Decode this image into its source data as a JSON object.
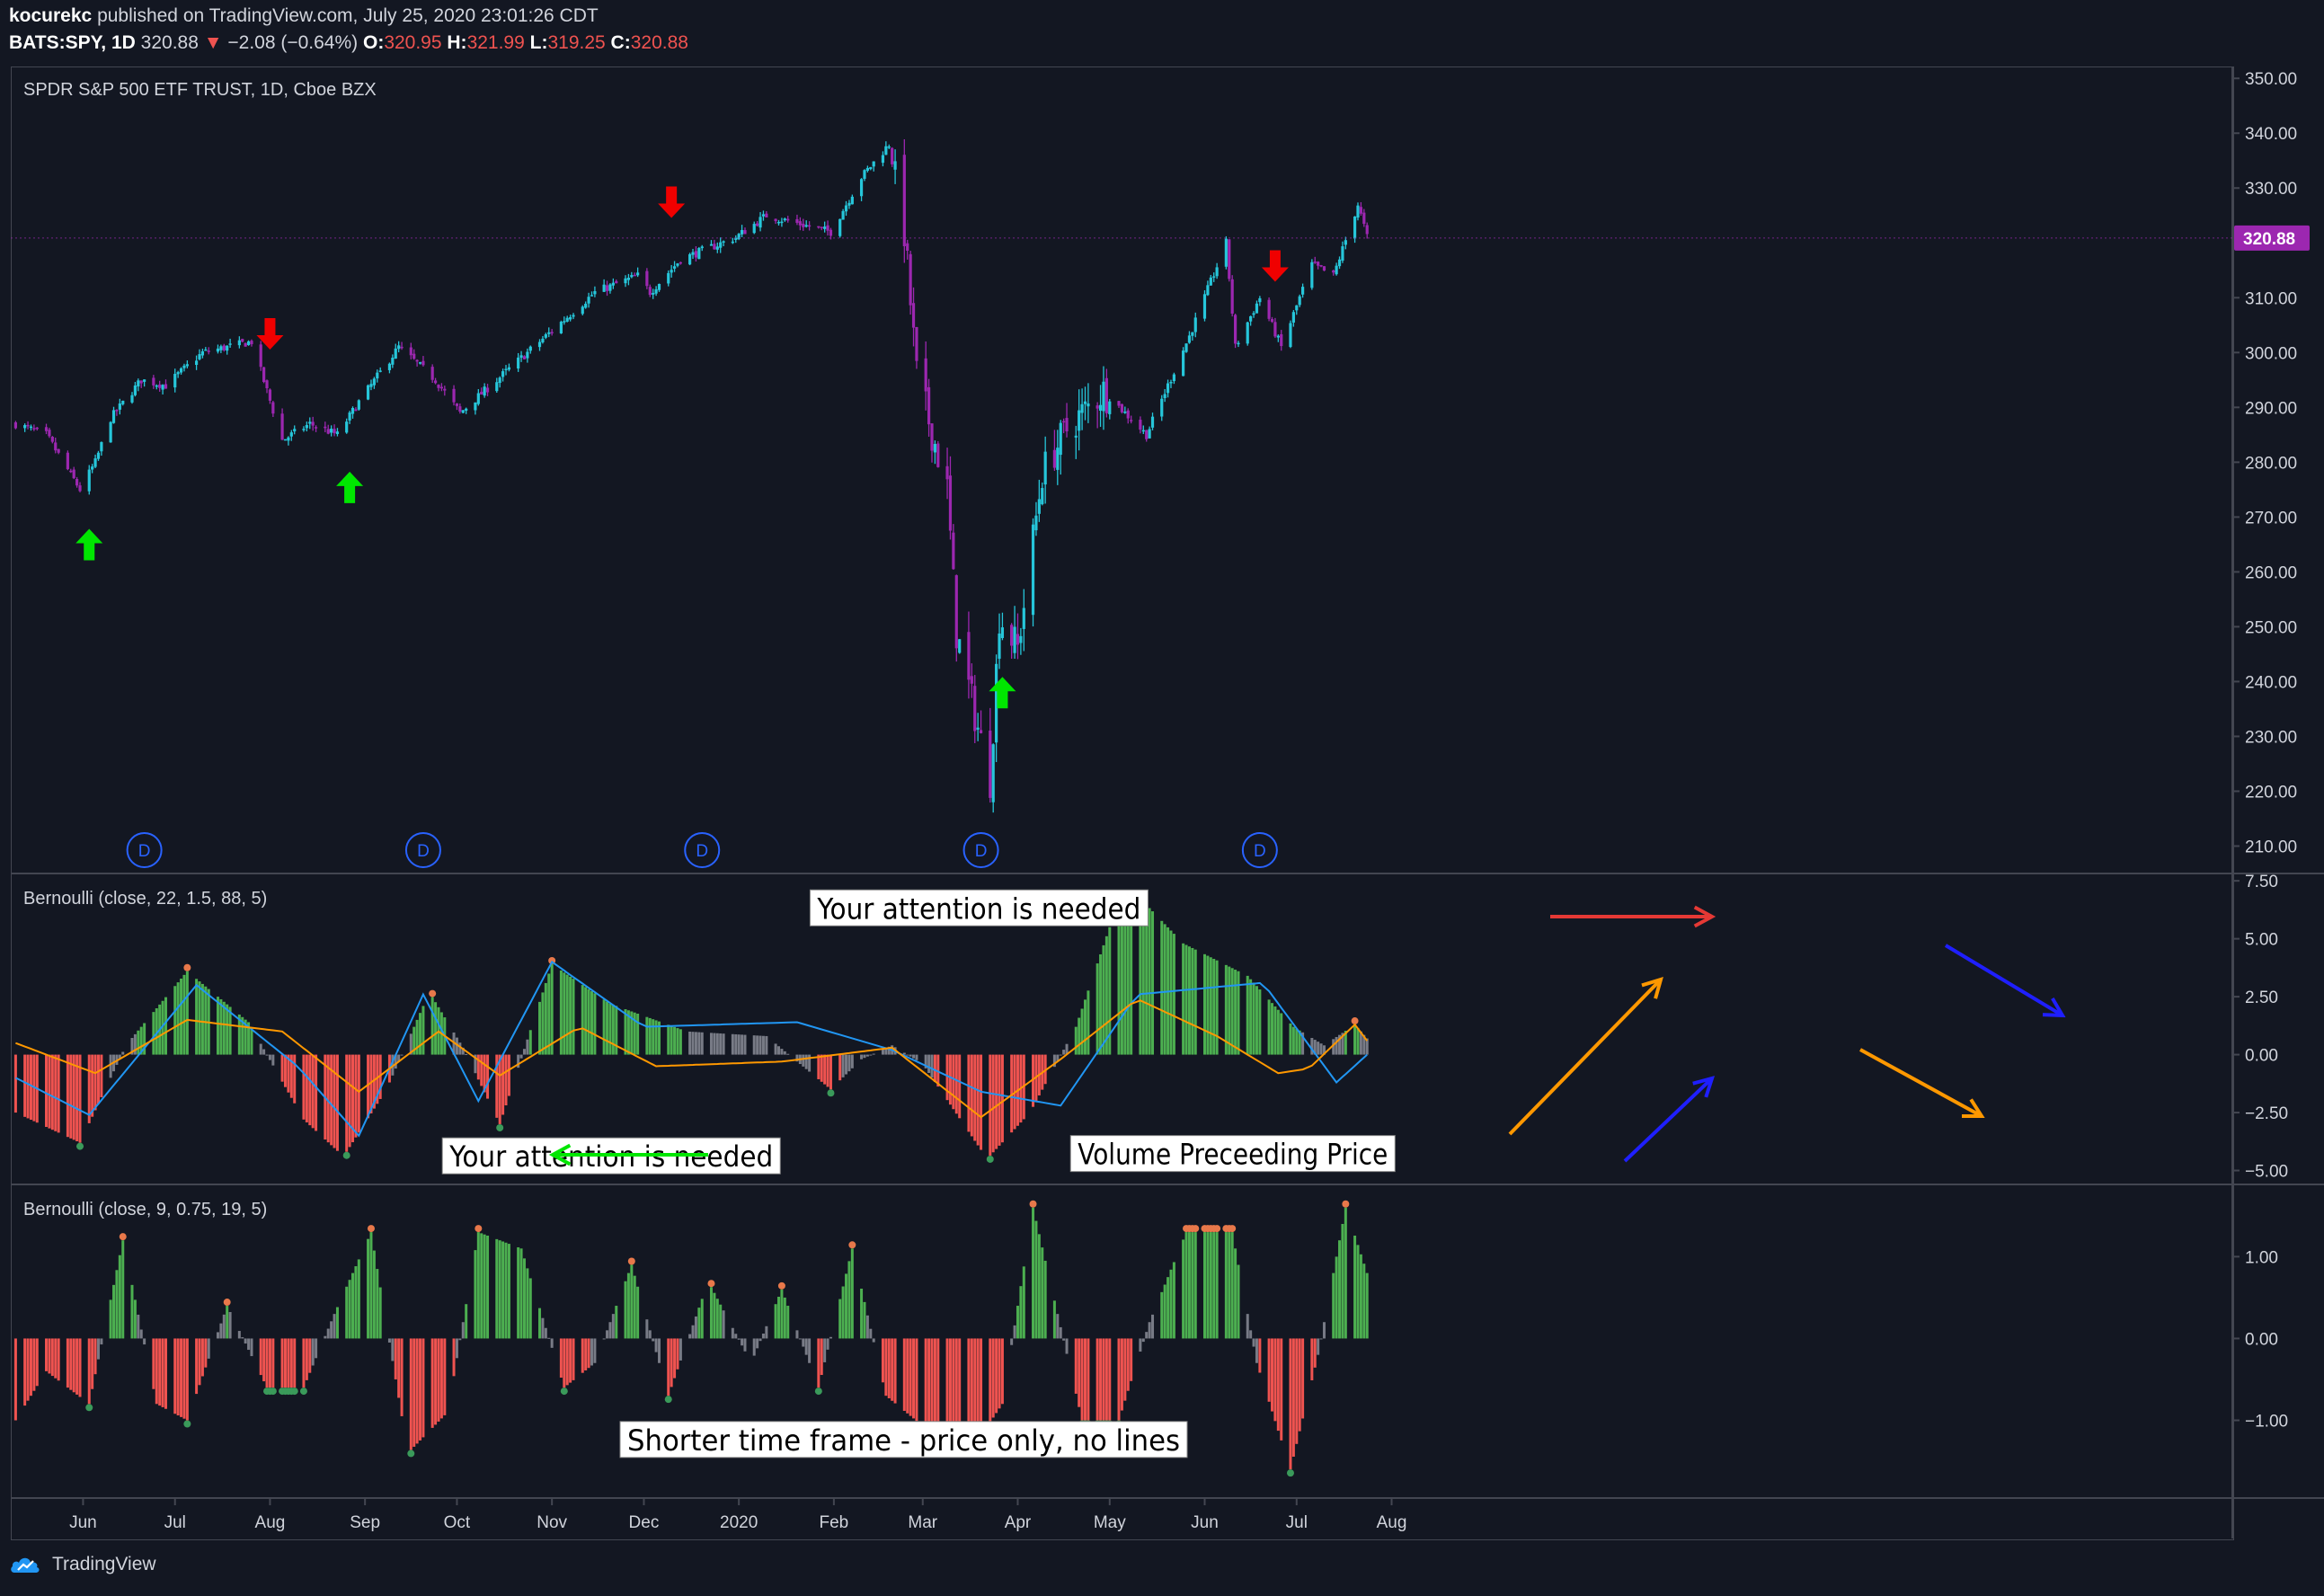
{
  "header": {
    "author": "kocurekc",
    "published_text": "published on TradingView.com, July 25, 2020 23:01:26 CDT",
    "symbol": "BATS:SPY, 1D",
    "last": "320.88",
    "change_arrow": "▼",
    "change": "−2.08 (−0.64%)",
    "o_label": "O:",
    "o": "320.95",
    "h_label": "H:",
    "h": "321.99",
    "l_label": "L:",
    "l": "319.25",
    "c_label": "C:",
    "c": "320.88"
  },
  "footer": {
    "brand": "TradingView",
    "icon": "tradingview-logo-icon"
  },
  "colors": {
    "background": "#131722",
    "grid": "#2a2e39",
    "border": "#434651",
    "candle_up": "#26c6da",
    "candle_down": "#9c27b0",
    "hist_green": "#4caf50",
    "hist_red": "#ef5350",
    "hist_gray": "#787b86",
    "line_blue": "#2196f3",
    "line_orange": "#ff9800",
    "arrow_up": "#00e600",
    "arrow_down": "#f00000",
    "price_tag": "#9c27b0"
  },
  "chart_data": [
    {
      "type": "candlestick",
      "title": "SPDR S&P 500 ETF TRUST, 1D, Cboe BZX",
      "last_price_label": "320.88",
      "ylim": [
        205,
        352
      ],
      "y_ticks": [
        "350.00",
        "340.00",
        "330.00",
        "320.00",
        "310.00",
        "300.00",
        "290.00",
        "280.00",
        "270.00",
        "260.00",
        "250.00",
        "240.00",
        "230.00",
        "220.00",
        "210.00"
      ],
      "x_ticks": [
        "Jun",
        "Jul",
        "Aug",
        "Sep",
        "Oct",
        "Nov",
        "Dec",
        "2020",
        "Feb",
        "Mar",
        "Apr",
        "May",
        "Jun",
        "Jul",
        "Aug"
      ],
      "x_tick_dates": [
        "2019-06-01",
        "2019-07-01",
        "2019-08-01",
        "2019-09-01",
        "2019-10-01",
        "2019-11-01",
        "2019-12-01",
        "2020-01-01",
        "2020-02-01",
        "2020-03-01",
        "2020-04-01",
        "2020-05-01",
        "2020-06-01",
        "2020-07-01",
        "2020-08-01"
      ],
      "close_series": {
        "x": [
          "2019-05-10",
          "2019-05-20",
          "2019-05-31",
          "2019-06-05",
          "2019-06-10",
          "2019-06-20",
          "2019-06-28",
          "2019-07-10",
          "2019-07-26",
          "2019-08-05",
          "2019-08-14",
          "2019-08-23",
          "2019-08-30",
          "2019-09-12",
          "2019-09-24",
          "2019-10-02",
          "2019-10-10",
          "2019-10-28",
          "2019-11-15",
          "2019-11-29",
          "2019-12-03",
          "2019-12-13",
          "2019-12-31",
          "2020-01-10",
          "2020-01-31",
          "2020-02-10",
          "2020-02-19",
          "2020-02-24",
          "2020-02-28",
          "2020-03-09",
          "2020-03-12",
          "2020-03-16",
          "2020-03-20",
          "2020-03-23",
          "2020-03-26",
          "2020-04-01",
          "2020-04-09",
          "2020-04-17",
          "2020-04-29",
          "2020-05-13",
          "2020-05-27",
          "2020-06-08",
          "2020-06-11",
          "2020-06-19",
          "2020-06-26",
          "2020-07-06",
          "2020-07-13",
          "2020-07-21",
          "2020-07-24"
        ],
        "y": [
          287,
          285,
          275,
          280,
          288,
          295,
          294,
          300,
          302,
          284,
          287,
          285,
          291,
          301,
          295,
          289,
          293,
          302,
          311,
          314,
          311,
          317,
          321,
          325,
          322,
          332,
          338,
          322,
          296,
          275,
          249,
          239,
          229,
          222,
          252,
          246,
          278,
          286,
          293,
          285,
          303,
          320,
          301,
          310,
          301,
          316,
          314,
          327,
          321
        ]
      },
      "annotations_up_arrows": [
        "2019-06-03",
        "2019-08-27",
        "2020-03-27"
      ],
      "annotations_down_arrows": [
        "2019-08-01",
        "2019-12-10",
        "2020-06-24"
      ],
      "dividend_markers": {
        "label": "D",
        "x": [
          "2019-06-21",
          "2019-09-20",
          "2019-12-20",
          "2020-03-20",
          "2020-06-19"
        ]
      }
    },
    {
      "type": "bar+line",
      "title": "Bernoulli (close, 22, 1.5, 88, 5)",
      "ylim": [
        -5.6,
        7.7
      ],
      "y_ticks": [
        "7.50",
        "5.00",
        "2.50",
        "0.00",
        "−2.50",
        "−5.00"
      ],
      "histogram": {
        "x": [
          "2019-05-10",
          "2019-05-31",
          "2019-06-15",
          "2019-07-05",
          "2019-07-25",
          "2019-08-12",
          "2019-08-25",
          "2019-09-08",
          "2019-09-22",
          "2019-10-03",
          "2019-10-15",
          "2019-11-01",
          "2019-11-20",
          "2019-12-15",
          "2020-01-10",
          "2020-01-31",
          "2020-02-10",
          "2020-02-20",
          "2020-03-01",
          "2020-03-22",
          "2020-04-05",
          "2020-04-20",
          "2020-05-01",
          "2020-05-12",
          "2020-05-25",
          "2020-06-15",
          "2020-06-30",
          "2020-07-10",
          "2020-07-20",
          "2020-07-24"
        ],
        "y": [
          -2.5,
          -3.8,
          0.4,
          3.6,
          1.4,
          -2.8,
          -4.4,
          -1.5,
          2.7,
          0.3,
          -3.0,
          3.9,
          2.2,
          1.0,
          0.8,
          -1.5,
          -0.2,
          0.4,
          -0.4,
          -4.5,
          -2.5,
          1.2,
          5.5,
          6.6,
          4.8,
          3.4,
          1.2,
          0.4,
          1.3,
          0.7
        ]
      },
      "lines": [
        {
          "color": "blue",
          "x": [
            "2019-05-10",
            "2019-06-03",
            "2019-07-08",
            "2019-08-10",
            "2019-08-30",
            "2019-09-20",
            "2019-10-08",
            "2019-11-01",
            "2019-12-01",
            "2020-01-20",
            "2020-02-20",
            "2020-03-20",
            "2020-04-15",
            "2020-05-10",
            "2020-06-20",
            "2020-07-14",
            "2020-07-24"
          ],
          "y": [
            -1.0,
            -2.6,
            3.0,
            -0.5,
            -3.5,
            2.6,
            -2.0,
            4.0,
            1.2,
            1.4,
            0.2,
            -1.6,
            -2.2,
            2.6,
            3.1,
            -1.2,
            0.0
          ]
        },
        {
          "color": "orange",
          "x": [
            "2019-05-10",
            "2019-06-05",
            "2019-07-05",
            "2019-08-05",
            "2019-08-30",
            "2019-09-25",
            "2019-10-15",
            "2019-11-10",
            "2019-12-05",
            "2020-01-15",
            "2020-02-20",
            "2020-03-20",
            "2020-04-15",
            "2020-05-10",
            "2020-06-05",
            "2020-06-25",
            "2020-07-05",
            "2020-07-20",
            "2020-07-24"
          ],
          "y": [
            0.5,
            -0.8,
            1.5,
            1.0,
            -1.6,
            1.0,
            -0.9,
            1.2,
            -0.5,
            -0.3,
            0.3,
            -2.7,
            -0.2,
            2.4,
            0.8,
            -0.8,
            -0.6,
            1.3,
            0.6
          ]
        }
      ],
      "notes": [
        {
          "text": "Your attention is needed",
          "x": "2020-01-26",
          "y": 6.1
        },
        {
          "text": "Your attention is needed",
          "x": "2019-09-28",
          "y": -4.6
        },
        {
          "text": "Volume Preceeding Price",
          "x": "2020-04-20",
          "y": -4.5
        }
      ]
    },
    {
      "type": "bar",
      "title": "Bernoulli (close, 9, 0.75, 19, 5)",
      "ylim": [
        -1.95,
        1.85
      ],
      "y_ticks": [
        "1.00",
        "0.00",
        "−1.00"
      ],
      "histogram": {
        "x": [
          "2019-05-10",
          "2019-05-20",
          "2019-06-03",
          "2019-06-14",
          "2019-06-25",
          "2019-07-05",
          "2019-07-18",
          "2019-07-31",
          "2019-08-12",
          "2019-08-22",
          "2019-09-03",
          "2019-09-15",
          "2019-09-28",
          "2019-10-08",
          "2019-10-22",
          "2019-11-05",
          "2019-11-15",
          "2019-11-27",
          "2019-12-09",
          "2019-12-22",
          "2020-01-05",
          "2020-01-15",
          "2020-01-27",
          "2020-02-07",
          "2020-02-18",
          "2020-03-02",
          "2020-03-18",
          "2020-03-27",
          "2020-04-06",
          "2020-04-22",
          "2020-05-04",
          "2020-05-14",
          "2020-05-26",
          "2020-06-10",
          "2020-06-18",
          "2020-06-29",
          "2020-07-08",
          "2020-07-17",
          "2020-07-24"
        ],
        "y": [
          -1.0,
          -0.4,
          -0.8,
          1.2,
          -0.8,
          -1.0,
          0.4,
          -0.6,
          -0.6,
          0.3,
          1.3,
          -1.4,
          -0.9,
          1.3,
          1.1,
          -0.6,
          -0.3,
          0.9,
          -0.7,
          0.7,
          -0.3,
          0.6,
          -0.6,
          1.1,
          -0.7,
          -1.1,
          -1.3,
          -0.8,
          1.6,
          -1.0,
          -1.0,
          0.2,
          1.3,
          1.3,
          -0.3,
          -1.6,
          -0.2,
          1.6,
          0.8
        ]
      },
      "notes": [
        {
          "text": "Shorter time frame - price only, no lines",
          "x": "2019-11-25",
          "y": -1.3
        }
      ]
    }
  ]
}
